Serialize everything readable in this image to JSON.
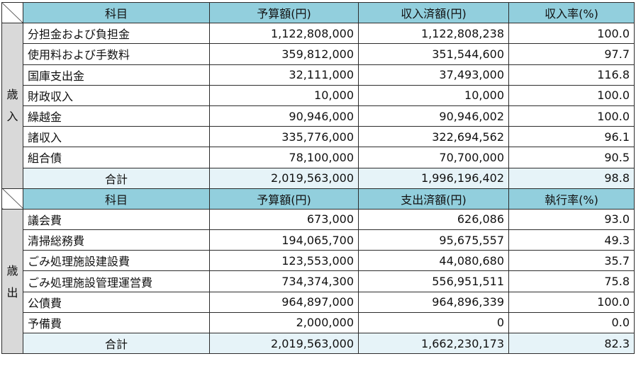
{
  "income": {
    "section_label": [
      "歳",
      "入"
    ],
    "headers": [
      "科目",
      "予算額(円)",
      "収入済額(円)",
      "収入率(%)"
    ],
    "rows": [
      [
        "分担金および負担金",
        "1,122,808,000",
        "1,122,808,238",
        "100.0"
      ],
      [
        "使用料および手数料",
        "359,812,000",
        "351,544,600",
        "97.7"
      ],
      [
        "国庫支出金",
        "32,111,000",
        "37,493,000",
        "116.8"
      ],
      [
        "財政収入",
        "10,000",
        "10,000",
        "100.0"
      ],
      [
        "繰越金",
        "90,946,000",
        "90,946,002",
        "100.0"
      ],
      [
        "諸収入",
        "335,776,000",
        "322,694,562",
        "96.1"
      ],
      [
        "組合債",
        "78,100,000",
        "70,700,000",
        "90.5"
      ]
    ],
    "total": [
      "合計",
      "2,019,563,000",
      "1,996,196,402",
      "98.8"
    ]
  },
  "expenditure": {
    "section_label": [
      "歳",
      "出"
    ],
    "headers": [
      "科目",
      "予算額(円)",
      "支出済額(円)",
      "執行率(%)"
    ],
    "rows": [
      [
        "議会費",
        "673,000",
        "626,086",
        "93.0"
      ],
      [
        "清掃総務費",
        "194,065,700",
        "95,675,557",
        "49.3"
      ],
      [
        "ごみ処理施設建設費",
        "123,553,000",
        "44,080,680",
        "35.7"
      ],
      [
        "ごみ処理施設管理運営費",
        "734,374,300",
        "556,951,511",
        "75.8"
      ],
      [
        "公債費",
        "964,897,000",
        "964,896,339",
        "100.0"
      ],
      [
        "予備費",
        "2,000,000",
        "0",
        "0.0"
      ]
    ],
    "total": [
      "合計",
      "2,019,563,000",
      "1,662,230,173",
      "82.3"
    ]
  }
}
